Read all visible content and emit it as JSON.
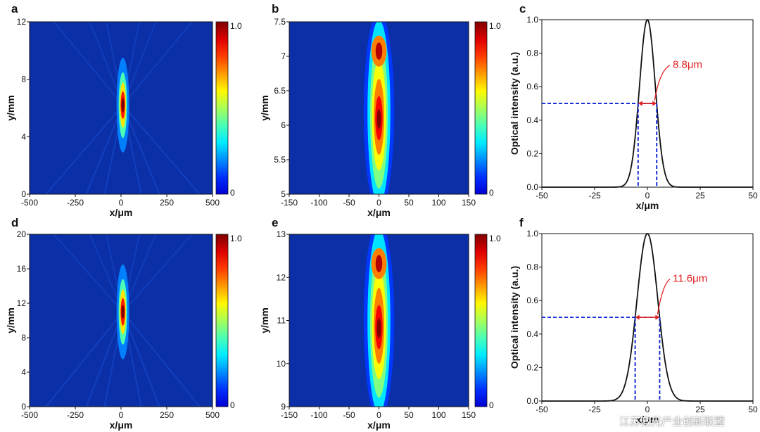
{
  "colors": {
    "map_background": "#0a2fa6",
    "map_peak": "#b40000",
    "profile_line": "#111111",
    "fwhm_guide": "#1a2fd6",
    "fwhm_annotation": "#e02020"
  },
  "watermark": "江苏激光产业创新联盟",
  "chart_data": [
    {
      "panel": "a",
      "type": "heatmap",
      "xlabel": "x/μm",
      "ylabel": "y/mm",
      "xlim": [
        -500,
        500
      ],
      "ylim": [
        0,
        12
      ],
      "xticks": [
        "-500",
        "-250",
        "0",
        "250",
        "500"
      ],
      "yticks": [
        "0",
        "4",
        "8",
        "12"
      ],
      "colorbar": {
        "min_label": "0",
        "max_label": "1.0",
        "range": [
          0,
          1.0
        ]
      },
      "hotspot": {
        "x_center": 10,
        "y_center": 6.2,
        "peak": 1.0
      }
    },
    {
      "panel": "b",
      "type": "heatmap",
      "xlabel": "x/μm",
      "ylabel": "y/mm",
      "xlim": [
        -150,
        150
      ],
      "ylim": [
        5,
        7.5
      ],
      "xticks": [
        "-150",
        "-100",
        "-50",
        "0",
        "50",
        "100",
        "150"
      ],
      "yticks": [
        "5",
        "5.5",
        "6",
        "6.5",
        "7",
        "7.5"
      ],
      "colorbar": {
        "min_label": "0",
        "max_label": "1.0",
        "range": [
          0,
          1.0
        ]
      },
      "hotspot": {
        "x_center": 0,
        "y_center": 6.2,
        "peak": 1.0
      }
    },
    {
      "panel": "c",
      "type": "line",
      "xlabel": "x/μm",
      "ylabel": "Optical intensity (a.u.)",
      "xlim": [
        -50,
        50
      ],
      "ylim": [
        0,
        1.0
      ],
      "xticks": [
        "-50",
        "-25",
        "0",
        "25",
        "50"
      ],
      "yticks": [
        "0.0",
        "0.2",
        "0.4",
        "0.6",
        "0.8",
        "1.0"
      ],
      "series": [
        {
          "x_center": 0,
          "fwhm": 8.8,
          "peak": 1.0
        }
      ],
      "annotation": {
        "text": "8.8μm",
        "half_max": 0.5
      }
    },
    {
      "panel": "d",
      "type": "heatmap",
      "xlabel": "x/μm",
      "ylabel": "y/mm",
      "xlim": [
        -500,
        500
      ],
      "ylim": [
        0,
        20
      ],
      "xticks": [
        "-500",
        "-250",
        "0",
        "250",
        "500"
      ],
      "yticks": [
        "0",
        "4",
        "8",
        "12",
        "16",
        "20"
      ],
      "colorbar": {
        "min_label": "0",
        "max_label": "1.0",
        "range": [
          0,
          1.0
        ]
      },
      "hotspot": {
        "x_center": 10,
        "y_center": 11,
        "peak": 1.0
      }
    },
    {
      "panel": "e",
      "type": "heatmap",
      "xlabel": "x/μm",
      "ylabel": "y/mm",
      "xlim": [
        -150,
        150
      ],
      "ylim": [
        9,
        13
      ],
      "xticks": [
        "-150",
        "-100",
        "-50",
        "0",
        "50",
        "100",
        "150"
      ],
      "yticks": [
        "9",
        "10",
        "11",
        "12",
        "13"
      ],
      "colorbar": {
        "min_label": "0",
        "max_label": "1.0",
        "range": [
          0,
          1.0
        ]
      },
      "hotspot": {
        "x_center": 0,
        "y_center": 11,
        "peak": 1.0
      }
    },
    {
      "panel": "f",
      "type": "line",
      "xlabel": "x/μm",
      "ylabel": "Optical intensity (a.u.)",
      "xlim": [
        -50,
        50
      ],
      "ylim": [
        0,
        1.0
      ],
      "xticks": [
        "-50",
        "-25",
        "0",
        "25",
        "50"
      ],
      "yticks": [
        "0.0",
        "0.2",
        "0.4",
        "0.6",
        "0.8",
        "1.0"
      ],
      "series": [
        {
          "x_center": 0,
          "fwhm": 11.6,
          "peak": 1.0
        }
      ],
      "annotation": {
        "text": "11.6μm",
        "half_max": 0.5
      }
    }
  ]
}
